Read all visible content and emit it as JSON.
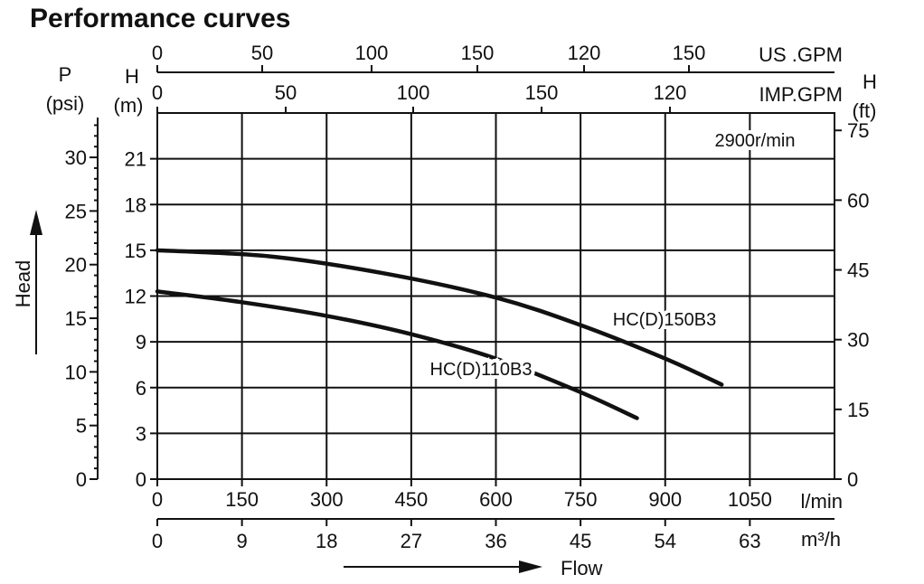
{
  "chart_data": {
    "type": "line",
    "title": "Performance curves",
    "speed_label": "2900r/min",
    "x_axis": {
      "label": "Flow",
      "unit": "l/min",
      "range": [
        0,
        1200
      ],
      "ticks": [
        0,
        150,
        300,
        450,
        600,
        750,
        900,
        1050
      ]
    },
    "x_secondary": {
      "unit": "m³/h",
      "tick_labels": [
        "0",
        "9",
        "18",
        "27",
        "36",
        "45",
        "54",
        "63"
      ]
    },
    "x_top_us": {
      "unit": "US .GPM",
      "tick_labels": [
        "0",
        "50",
        "100",
        "150",
        "120",
        "150"
      ]
    },
    "x_top_imp": {
      "unit": "IMP.GPM",
      "tick_labels": [
        "0",
        "50",
        "100",
        "150",
        "120"
      ]
    },
    "y_axis": {
      "label": "Head",
      "unit_letter": "H",
      "unit": "(m)",
      "range": [
        0,
        24
      ],
      "ticks": [
        0,
        3,
        6,
        9,
        12,
        15,
        18,
        21
      ]
    },
    "y_psi": {
      "unit_letter": "P",
      "unit": "(psi)",
      "ticks": [
        0,
        5,
        10,
        15,
        20,
        25,
        30
      ]
    },
    "y_ft": {
      "unit_letter": "H",
      "unit": "(ft)",
      "ticks": [
        0,
        15,
        30,
        45,
        60,
        75
      ]
    },
    "grid": true,
    "series": [
      {
        "name": "HC(D)150B3",
        "x": [
          0,
          200,
          400,
          600,
          750,
          900,
          1000
        ],
        "y": [
          15.0,
          14.6,
          13.5,
          11.9,
          10.1,
          7.9,
          6.2
        ]
      },
      {
        "name": "HC(D)110B3",
        "x": [
          0,
          150,
          300,
          450,
          600,
          750,
          850
        ],
        "y": [
          12.3,
          11.6,
          10.7,
          9.5,
          7.9,
          5.7,
          4.0
        ]
      }
    ]
  }
}
